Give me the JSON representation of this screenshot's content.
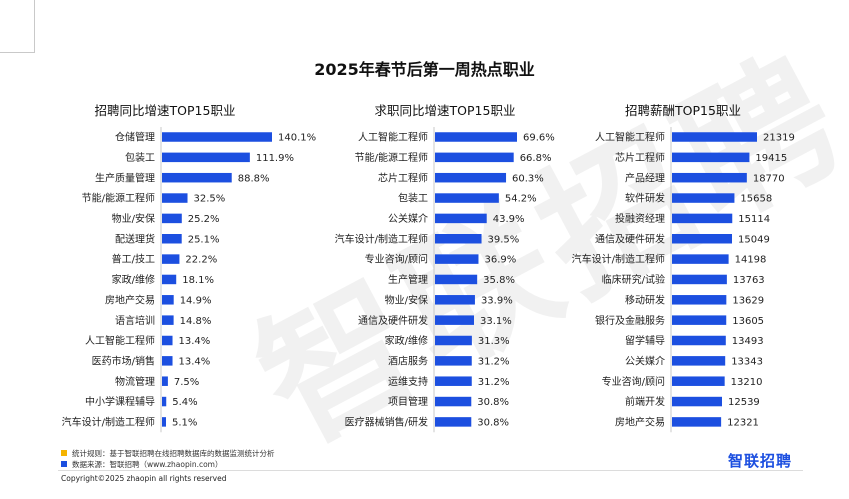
{
  "page": {
    "title": "2025年春节后第一周热点职业",
    "watermark": "智联招聘",
    "bar_color": "#1c4fe0"
  },
  "chart_data": [
    {
      "type": "bar",
      "orientation": "horizontal",
      "title": "招聘同比增速TOP15职业",
      "categories": [
        "仓储管理",
        "包装工",
        "生产质量管理",
        "节能/能源工程师",
        "物业/安保",
        "配送理货",
        "普工/技工",
        "家政/维修",
        "房地产交易",
        "语言培训",
        "人工智能工程师",
        "医药市场/销售",
        "物流管理",
        "中小学课程辅导",
        "汽车设计/制造工程师"
      ],
      "values": [
        140.1,
        111.9,
        88.8,
        32.5,
        25.2,
        25.1,
        22.2,
        18.1,
        14.9,
        14.8,
        13.4,
        13.4,
        7.5,
        5.4,
        5.1
      ],
      "labels": [
        "140.1%",
        "111.9%",
        "88.8%",
        "32.5%",
        "25.2%",
        "25.1%",
        "22.2%",
        "18.1%",
        "14.9%",
        "14.8%",
        "13.4%",
        "13.4%",
        "7.5%",
        "5.4%",
        "5.1%"
      ],
      "xlim": [
        0,
        140.1
      ]
    },
    {
      "type": "bar",
      "orientation": "horizontal",
      "title": "求职同比增速TOP15职业",
      "categories": [
        "人工智能工程师",
        "节能/能源工程师",
        "芯片工程师",
        "包装工",
        "公关媒介",
        "汽车设计/制造工程师",
        "专业咨询/顾问",
        "生产管理",
        "物业/安保",
        "通信及硬件研发",
        "家政/维修",
        "酒店服务",
        "运维支持",
        "项目管理",
        "医疗器械销售/研发"
      ],
      "values": [
        69.6,
        66.8,
        60.3,
        54.2,
        43.9,
        39.5,
        36.9,
        35.8,
        33.9,
        33.1,
        31.3,
        31.2,
        31.2,
        30.8,
        30.8
      ],
      "labels": [
        "69.6%",
        "66.8%",
        "60.3%",
        "54.2%",
        "43.9%",
        "39.5%",
        "36.9%",
        "35.8%",
        "33.9%",
        "33.1%",
        "31.3%",
        "31.2%",
        "31.2%",
        "30.8%",
        "30.8%"
      ],
      "xlim": [
        0,
        69.6
      ]
    },
    {
      "type": "bar",
      "orientation": "horizontal",
      "title": "招聘薪酬TOP15职业",
      "categories": [
        "人工智能工程师",
        "芯片工程师",
        "产品经理",
        "软件研发",
        "投融资经理",
        "通信及硬件研发",
        "汽车设计/制造工程师",
        "临床研究/试验",
        "移动研发",
        "银行及金融服务",
        "留学辅导",
        "公关媒介",
        "专业咨询/顾问",
        "前端开发",
        "房地产交易"
      ],
      "values": [
        21319,
        19415,
        18770,
        15658,
        15114,
        15049,
        14198,
        13763,
        13629,
        13605,
        13493,
        13343,
        13210,
        12539,
        12321
      ],
      "labels": [
        "21319",
        "19415",
        "18770",
        "15658",
        "15114",
        "15049",
        "14198",
        "13763",
        "13629",
        "13605",
        "13493",
        "13343",
        "13210",
        "12539",
        "12321"
      ],
      "xlim": [
        0,
        21319
      ]
    }
  ],
  "footer": {
    "note1": "统计规则：基于智联招聘在线招聘数据库的数据监测统计分析",
    "note2": "数据来源：智联招聘（www.zhaopin.com）",
    "note1_color": "#f5b400",
    "note2_color": "#1c4fe0",
    "copyright": "Copyright©2025 zhaopin all rights reserved",
    "logo": "智联招聘"
  }
}
